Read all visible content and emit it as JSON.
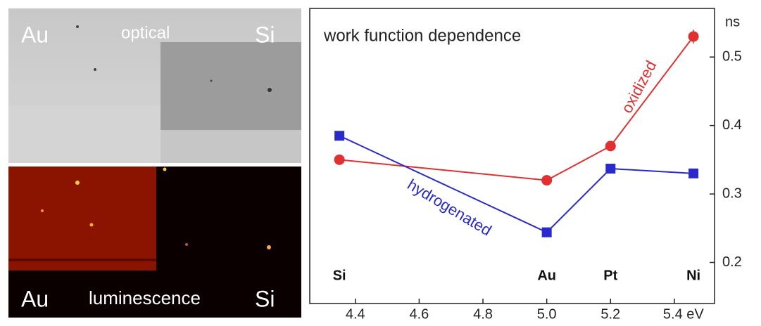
{
  "images": {
    "optical": {
      "left": "Au",
      "title": "optical",
      "right": "Si"
    },
    "luminescence": {
      "left": "Au",
      "title": "luminescence",
      "right": "Si"
    }
  },
  "chart_data": {
    "type": "line",
    "title": "work function dependence",
    "y_label": "ns",
    "x": [
      4.35,
      5.0,
      5.2,
      5.46
    ],
    "point_labels": [
      "Si",
      "Au",
      "Pt",
      "Ni"
    ],
    "series": [
      {
        "name": "oxidized",
        "color": "#e03030",
        "marker": "circle",
        "values": [
          0.35,
          0.32,
          0.37,
          0.53
        ],
        "errors": [
          null,
          null,
          null,
          0.01
        ]
      },
      {
        "name": "hydrogenated",
        "color": "#2a2acc",
        "marker": "square",
        "values": [
          0.385,
          0.244,
          0.337,
          0.33
        ]
      }
    ],
    "xlim": [
      4.257,
      5.526
    ],
    "ylim": [
      0.14,
      0.571
    ],
    "xticks": [
      4.4,
      4.6,
      4.8,
      {
        "value": 5.0,
        "label": "5.0"
      },
      5.2,
      {
        "value": 5.4,
        "label": "5.4 eV"
      }
    ],
    "yticks": [
      0.2,
      0.3,
      0.4,
      0.5
    ]
  }
}
